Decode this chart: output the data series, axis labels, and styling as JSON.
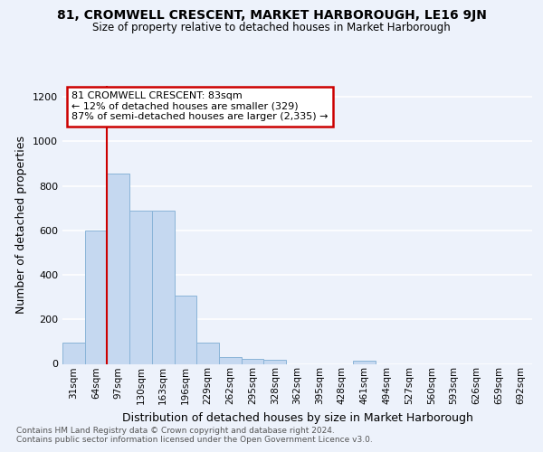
{
  "title1": "81, CROMWELL CRESCENT, MARKET HARBOROUGH, LE16 9JN",
  "title2": "Size of property relative to detached houses in Market Harborough",
  "xlabel": "Distribution of detached houses by size in Market Harborough",
  "ylabel": "Number of detached properties",
  "footnote1": "Contains HM Land Registry data © Crown copyright and database right 2024.",
  "footnote2": "Contains public sector information licensed under the Open Government Licence v3.0.",
  "bar_labels": [
    "31sqm",
    "64sqm",
    "97sqm",
    "130sqm",
    "163sqm",
    "196sqm",
    "229sqm",
    "262sqm",
    "295sqm",
    "328sqm",
    "362sqm",
    "395sqm",
    "428sqm",
    "461sqm",
    "494sqm",
    "527sqm",
    "560sqm",
    "593sqm",
    "626sqm",
    "659sqm",
    "692sqm"
  ],
  "bar_values": [
    97,
    600,
    855,
    690,
    690,
    305,
    97,
    32,
    22,
    18,
    0,
    0,
    0,
    15,
    0,
    0,
    0,
    0,
    0,
    0,
    0
  ],
  "bar_color": "#c5d8f0",
  "bar_edgecolor": "#8ab4d8",
  "vline_color": "#cc0000",
  "vline_bin": 2,
  "annotation_line1": "81 CROMWELL CRESCENT: 83sqm",
  "annotation_line2": "← 12% of detached houses are smaller (329)",
  "annotation_line3": "87% of semi-detached houses are larger (2,335) →",
  "annotation_box_facecolor": "#ffffff",
  "annotation_box_edgecolor": "#cc0000",
  "ylim": [
    0,
    1250
  ],
  "yticks": [
    0,
    200,
    400,
    600,
    800,
    1000,
    1200
  ],
  "background_color": "#edf2fb",
  "grid_color": "#ffffff",
  "title1_fontsize": 10,
  "title2_fontsize": 8.5,
  "ylabel_fontsize": 9,
  "xlabel_fontsize": 9,
  "tick_fontsize": 8,
  "xtick_fontsize": 7.5,
  "annotation_fontsize": 8,
  "footnote_fontsize": 6.5
}
